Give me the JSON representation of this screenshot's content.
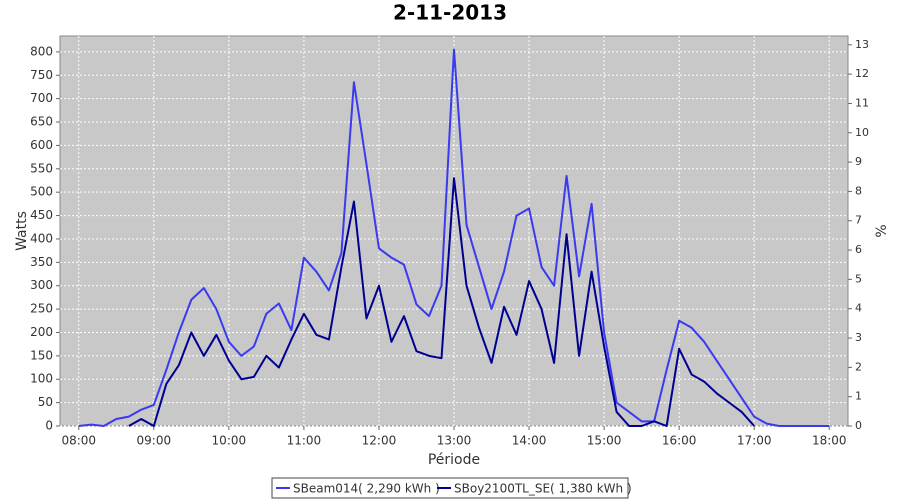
{
  "chart_data": {
    "type": "line",
    "title": "2-11-2013",
    "x_label": "Période",
    "y_label": "Watts",
    "y2_label": "%",
    "x": [
      480,
      490,
      500,
      510,
      520,
      530,
      540,
      550,
      560,
      570,
      580,
      590,
      600,
      610,
      620,
      630,
      640,
      650,
      660,
      670,
      680,
      690,
      700,
      710,
      720,
      730,
      740,
      750,
      760,
      770,
      780,
      790,
      800,
      810,
      820,
      830,
      840,
      850,
      860,
      870,
      880,
      890,
      900,
      910,
      920,
      930,
      940,
      950,
      960,
      970,
      980,
      990,
      1000,
      1010,
      1020,
      1030,
      1040,
      1050,
      1060,
      1070,
      1080
    ],
    "xlim": [
      465,
      1095
    ],
    "xticks": [
      {
        "value": 480,
        "label": "08:00"
      },
      {
        "value": 540,
        "label": "09:00"
      },
      {
        "value": 600,
        "label": "10:00"
      },
      {
        "value": 660,
        "label": "11:00"
      },
      {
        "value": 720,
        "label": "12:00"
      },
      {
        "value": 780,
        "label": "13:00"
      },
      {
        "value": 840,
        "label": "14:00"
      },
      {
        "value": 900,
        "label": "15:00"
      },
      {
        "value": 960,
        "label": "16:00"
      },
      {
        "value": 1020,
        "label": "17:00"
      },
      {
        "value": 1080,
        "label": "18:00"
      }
    ],
    "ylim": [
      0,
      834
    ],
    "yticks": [
      0,
      50,
      100,
      150,
      200,
      250,
      300,
      350,
      400,
      450,
      500,
      550,
      600,
      650,
      700,
      750,
      800
    ],
    "y2lim": [
      0,
      13.3
    ],
    "y2ticks": [
      0,
      1,
      2,
      3,
      4,
      5,
      6,
      7,
      8,
      9,
      10,
      11,
      12,
      13
    ],
    "grid": true,
    "legend": "bottom",
    "series": [
      {
        "name": "SBeam014( 2,290 kWh )",
        "color": "#3a3af0",
        "values": [
          0,
          3,
          0,
          15,
          20,
          35,
          45,
          120,
          200,
          270,
          295,
          250,
          180,
          150,
          170,
          240,
          262,
          205,
          360,
          330,
          290,
          370,
          735,
          560,
          380,
          360,
          345,
          260,
          235,
          300,
          805,
          430,
          340,
          250,
          330,
          450,
          465,
          340,
          300,
          535,
          320,
          475,
          200,
          50,
          30,
          10,
          10,
          120,
          225,
          210,
          180,
          140,
          100,
          60,
          20,
          5,
          0,
          0,
          0,
          0,
          0
        ]
      },
      {
        "name": "SBoy2100TL_SE( 1,380 kWh )",
        "color": "#000090",
        "values": [
          null,
          null,
          null,
          null,
          0,
          15,
          0,
          90,
          130,
          200,
          150,
          195,
          140,
          100,
          105,
          150,
          125,
          185,
          240,
          195,
          185,
          340,
          480,
          230,
          300,
          180,
          235,
          160,
          150,
          145,
          530,
          300,
          210,
          135,
          255,
          195,
          310,
          250,
          135,
          410,
          150,
          330,
          170,
          30,
          0,
          0,
          10,
          0,
          165,
          110,
          95,
          70,
          50,
          30,
          0,
          null,
          null,
          null,
          null,
          null,
          null
        ]
      }
    ]
  }
}
